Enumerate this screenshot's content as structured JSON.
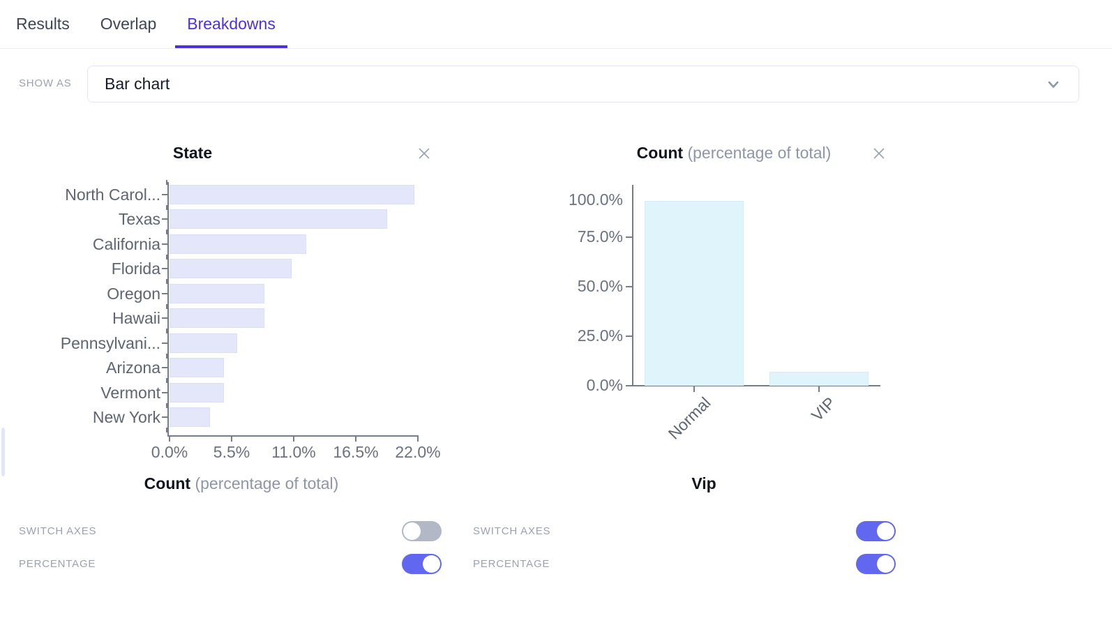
{
  "tabs": [
    {
      "label": "Results",
      "active": false
    },
    {
      "label": "Overlap",
      "active": false
    },
    {
      "label": "Breakdowns",
      "active": true
    }
  ],
  "show_as": {
    "label": "SHOW AS",
    "value": "Bar chart"
  },
  "chart_data": [
    {
      "type": "bar",
      "orientation": "horizontal",
      "title": "State",
      "categories": [
        "North Carol...",
        "Texas",
        "California",
        "Florida",
        "Oregon",
        "Hawaii",
        "Pennsylvani...",
        "Arizona",
        "Vermont",
        "New York"
      ],
      "values": [
        21.7,
        19.3,
        12.1,
        10.8,
        8.4,
        8.4,
        6.0,
        4.8,
        4.8,
        3.6
      ],
      "x_ticks": [
        "0.0%",
        "5.5%",
        "11.0%",
        "16.5%",
        "22.0%"
      ],
      "xlim": [
        0,
        22
      ],
      "xlabel_bold": "Count",
      "xlabel_suffix": "(percentage of total)",
      "bar_color": "#e4e7f9",
      "grid": false
    },
    {
      "type": "bar",
      "orientation": "vertical",
      "title_bold": "Count",
      "title_suffix": "(percentage of total)",
      "categories": [
        "Normal",
        "VIP"
      ],
      "values": [
        93.4,
        7.0
      ],
      "y_ticks": [
        "0.0%",
        "25.0%",
        "50.0%",
        "75.0%",
        "100.0%"
      ],
      "ylim": [
        0,
        100
      ],
      "xlabel": "Vip",
      "bar_color": "#dff4fb",
      "grid": false
    }
  ],
  "panels": [
    {
      "controls": [
        {
          "label": "SWITCH AXES",
          "on": false
        },
        {
          "label": "PERCENTAGE",
          "on": true
        }
      ]
    },
    {
      "controls": [
        {
          "label": "SWITCH AXES",
          "on": true
        },
        {
          "label": "PERCENTAGE",
          "on": true
        }
      ]
    }
  ],
  "icons": {
    "chevron_down": "⌄",
    "close": "✕"
  },
  "colors": {
    "accent": "#4c30e0",
    "toggle_on": "#6267f0",
    "toggle_off": "#b2b8c6",
    "left_bar": "#e4e7f9",
    "right_bar": "#dff4fb",
    "axis": "#757d8a",
    "tick_label": "#6a7280",
    "cat_label": "#5d6571",
    "muted": "#9aa1b0",
    "title_dark": "#10141f",
    "title_muted": "#8d96a8",
    "box_border": "#e2e7f3",
    "tab_inactive": "#3d4554",
    "tab_border": "#eaedf3",
    "close": "#99a3b2",
    "scroll": "#e2e6f8"
  }
}
